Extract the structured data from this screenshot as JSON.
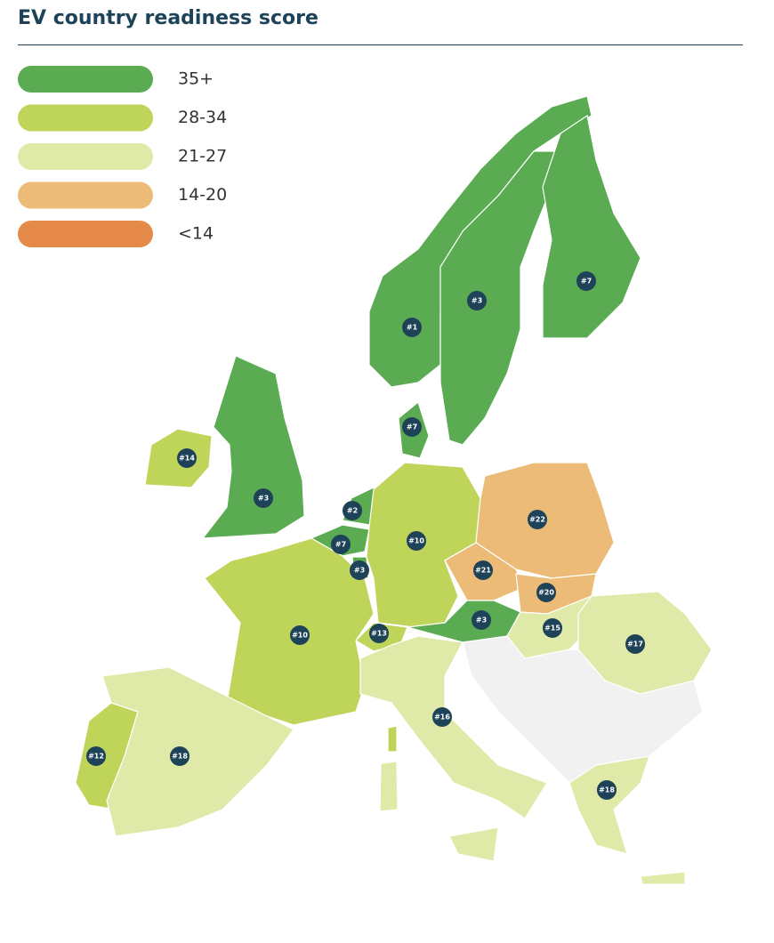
{
  "title": "EV country readiness score",
  "legend": [
    {
      "label": "35+",
      "color": "#5aab52"
    },
    {
      "label": "28-34",
      "color": "#bfd55a"
    },
    {
      "label": "21-27",
      "color": "#dfe9a8"
    },
    {
      "label": "14-20",
      "color": "#ecbb78"
    },
    {
      "label": "<14",
      "color": "#e58a48"
    }
  ],
  "markers": [
    {
      "label": "#1"
    },
    {
      "label": "#3"
    },
    {
      "label": "#7"
    },
    {
      "label": "#7"
    },
    {
      "label": "#14"
    },
    {
      "label": "#3"
    },
    {
      "label": "#2"
    },
    {
      "label": "#7"
    },
    {
      "label": "#3"
    },
    {
      "label": "#10"
    },
    {
      "label": "#22"
    },
    {
      "label": "#21"
    },
    {
      "label": "#20"
    },
    {
      "label": "#3"
    },
    {
      "label": "#15"
    },
    {
      "label": "#17"
    },
    {
      "label": "#13"
    },
    {
      "label": "#10"
    },
    {
      "label": "#16"
    },
    {
      "label": "#12"
    },
    {
      "label": "#18"
    },
    {
      "label": "#18"
    }
  ]
}
